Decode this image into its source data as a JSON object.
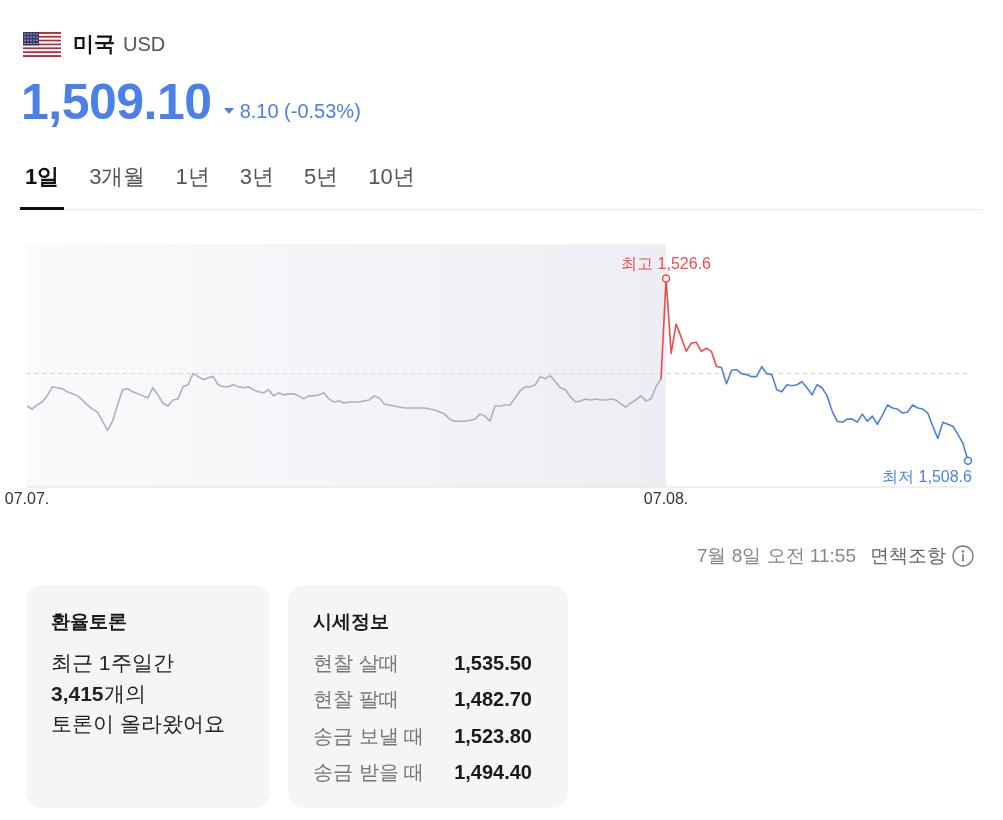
{
  "chart_data": {
    "type": "line",
    "title": "미국",
    "subtitle": "USD",
    "annotations": [
      "1,509.10",
      "8.10 (-0.53%)",
      "1일",
      "3개월",
      "1년",
      "3년",
      "5년",
      "10년",
      "7월 8일 오전 11:55",
      "면책조항",
      "환율토론",
      "최근 1주일간",
      "3,415",
      "개의",
      "토론이 올라왔어요",
      "시세정보",
      "현찰 살때",
      "1,535.50",
      "현찰 팔때",
      "1,482.70",
      "송금 보낼 때",
      "1,523.80",
      "송금 받을 때",
      "1,494.40"
    ],
    "categories": [
      "07.07.",
      null,
      null,
      null,
      null,
      null,
      null,
      null,
      null,
      null,
      null,
      null,
      null,
      null,
      null,
      null,
      null,
      null,
      null,
      null,
      null,
      null,
      null,
      null,
      null,
      null,
      null,
      null,
      null,
      null,
      null,
      null,
      null,
      null,
      null,
      null,
      null,
      null,
      null,
      null,
      null,
      null,
      null,
      null,
      null,
      null,
      null,
      null,
      null,
      null,
      null,
      null,
      null,
      null,
      null,
      null,
      null,
      null,
      null,
      null,
      null,
      null,
      null,
      null,
      null,
      null,
      null,
      null,
      null,
      null,
      null,
      null,
      null,
      null,
      null,
      null,
      null,
      null,
      null,
      null,
      null,
      null,
      null,
      null,
      null,
      null,
      null,
      null,
      null,
      null,
      null,
      null,
      null,
      null,
      null,
      null,
      null,
      null,
      null,
      null,
      null,
      null,
      null,
      null,
      null,
      null,
      null,
      null,
      null,
      null,
      null,
      null,
      null,
      null,
      null,
      null,
      null,
      null,
      null,
      null,
      null,
      null,
      null,
      null,
      null,
      null,
      null,
      "07.08.",
      null,
      null,
      null,
      null,
      null,
      null,
      null,
      null,
      null,
      null,
      null,
      null,
      null,
      null,
      null,
      null,
      null,
      null,
      null,
      null,
      null,
      null,
      null,
      null,
      null,
      null,
      null,
      null,
      null,
      null,
      null,
      null,
      null,
      null,
      null,
      null,
      null,
      null,
      null,
      null,
      null,
      null,
      null,
      null,
      null,
      null,
      null,
      null,
      null,
      null,
      null,
      null,
      null,
      null,
      null,
      null,
      null,
      null,
      null,
      null
    ],
    "series": [
      {
        "color": "#a9b2c4",
        "values": [
          1514.0,
          1513.7,
          1514.1,
          1514.4,
          1515.0,
          1515.9,
          1515.8,
          1515.7,
          1515.4,
          1515.2,
          1515.0,
          1514.6,
          1514.1,
          1513.7,
          1513.4,
          1512.5,
          1511.6,
          1512.5,
          1514.1,
          1515.6,
          1515.7,
          1515.4,
          1515.2,
          1515.0,
          1514.8,
          1515.8,
          1515.1,
          1514.3,
          1514.0,
          1514.6,
          1514.7,
          1515.9,
          1516.1,
          1517.2,
          1516.9,
          1516.6,
          1516.8,
          1516.9,
          1516.1,
          1515.9,
          1515.9,
          1516.1,
          1515.9,
          1515.8,
          1515.9,
          1515.6,
          1515.4,
          1515.3,
          1515.6,
          1515.0,
          1515.3,
          1515.1,
          1515.2,
          1515.2,
          1515.0,
          1514.7,
          1515.0,
          1515.0,
          1515.1,
          1515.3,
          1514.7,
          1514.4,
          1514.5,
          1514.3,
          1514.4,
          1514.4,
          1514.4,
          1514.5,
          1514.6,
          1515.0,
          1514.8,
          1514.2,
          1514.1,
          1514.0,
          1513.9,
          1513.8,
          1513.8,
          1513.8,
          1513.8,
          1513.8,
          1513.7,
          1513.6,
          1513.4,
          1513.2,
          1512.7,
          1512.5,
          1512.5,
          1512.5,
          1512.6,
          1512.7,
          1513.2,
          1513.0,
          1512.5,
          1514.0,
          1514.0,
          1514.1,
          1514.1,
          1514.8,
          1515.5,
          1515.9,
          1515.9,
          1516.1,
          1516.9,
          1516.7,
          1517.0,
          1516.4,
          1515.8,
          1515.6,
          1514.9,
          1514.4,
          1514.5,
          1514.7,
          1514.6,
          1514.7,
          1514.6,
          1514.6,
          1514.7,
          1514.6,
          1514.2,
          1513.9,
          1514.3,
          1514.6,
          1515.0,
          1514.5,
          1514.7,
          1515.9,
          1516.7,
          null,
          null,
          null,
          null,
          null,
          null,
          null,
          null,
          null,
          null,
          null,
          null,
          null,
          null,
          null,
          null,
          null,
          null,
          null,
          null,
          null,
          null,
          null,
          null,
          null,
          null,
          null,
          null,
          null,
          null,
          null,
          null,
          null,
          null,
          null,
          null,
          null,
          null,
          null,
          null,
          null,
          null,
          null,
          null,
          null,
          null,
          null,
          null,
          null,
          null,
          null,
          null,
          null,
          null,
          null,
          null,
          null,
          null,
          null,
          null,
          null
        ]
      },
      {
        "color": "#ee4b4e",
        "values": [
          null,
          null,
          null,
          null,
          null,
          null,
          null,
          null,
          null,
          null,
          null,
          null,
          null,
          null,
          null,
          null,
          null,
          null,
          null,
          null,
          null,
          null,
          null,
          null,
          null,
          null,
          null,
          null,
          null,
          null,
          null,
          null,
          null,
          null,
          null,
          null,
          null,
          null,
          null,
          null,
          null,
          null,
          null,
          null,
          null,
          null,
          null,
          null,
          null,
          null,
          null,
          null,
          null,
          null,
          null,
          null,
          null,
          null,
          null,
          null,
          null,
          null,
          null,
          null,
          null,
          null,
          null,
          null,
          null,
          null,
          null,
          null,
          null,
          null,
          null,
          null,
          null,
          null,
          null,
          null,
          null,
          null,
          null,
          null,
          null,
          null,
          null,
          null,
          null,
          null,
          null,
          null,
          null,
          null,
          null,
          null,
          null,
          null,
          null,
          null,
          null,
          null,
          null,
          null,
          null,
          null,
          null,
          null,
          null,
          null,
          null,
          null,
          null,
          null,
          null,
          null,
          null,
          null,
          null,
          null,
          null,
          null,
          null,
          null,
          null,
          null,
          1516.7,
          1526.6,
          1519.2,
          1522.1,
          1520.8,
          1519.4,
          1520.2,
          1520.3,
          1519.4,
          1519.7,
          1519.4,
          1517.9,
          1517.8,
          null,
          null,
          null,
          null,
          null,
          null,
          null,
          null,
          null,
          null,
          null,
          null,
          null,
          null,
          null,
          null,
          null,
          null,
          null,
          null,
          null,
          null,
          null,
          null,
          null,
          null,
          null,
          null,
          null,
          null,
          null,
          null,
          null,
          null,
          null,
          null,
          null,
          null,
          null,
          null,
          null,
          null,
          null,
          null,
          null,
          null,
          null,
          null,
          null
        ],
        "value_labels": [
          null,
          null,
          null,
          null,
          null,
          null,
          null,
          null,
          null,
          null,
          null,
          null,
          null,
          null,
          null,
          null,
          null,
          null,
          null,
          null,
          null,
          null,
          null,
          null,
          null,
          null,
          null,
          null,
          null,
          null,
          null,
          null,
          null,
          null,
          null,
          null,
          null,
          null,
          null,
          null,
          null,
          null,
          null,
          null,
          null,
          null,
          null,
          null,
          null,
          null,
          null,
          null,
          null,
          null,
          null,
          null,
          null,
          null,
          null,
          null,
          null,
          null,
          null,
          null,
          null,
          null,
          null,
          null,
          null,
          null,
          null,
          null,
          null,
          null,
          null,
          null,
          null,
          null,
          null,
          null,
          null,
          null,
          null,
          null,
          null,
          null,
          null,
          null,
          null,
          null,
          null,
          null,
          null,
          null,
          null,
          null,
          null,
          null,
          null,
          null,
          null,
          null,
          null,
          null,
          null,
          null,
          null,
          null,
          null,
          null,
          null,
          null,
          null,
          null,
          null,
          null,
          null,
          null,
          null,
          null,
          null,
          null,
          null,
          null,
          null,
          null,
          null,
          "최고 1,526.6",
          null,
          null,
          null,
          null,
          null,
          null,
          null,
          null,
          null,
          null,
          null,
          null,
          null,
          null,
          null,
          null,
          null,
          null,
          null,
          null,
          null,
          null,
          null,
          null,
          null,
          null,
          null,
          null,
          null,
          null,
          null,
          null,
          null,
          null,
          null,
          null,
          null,
          null,
          null,
          null,
          null,
          null,
          null,
          null,
          null,
          null,
          null,
          null,
          null,
          null,
          null,
          null,
          null,
          null,
          null,
          null,
          null,
          null,
          null,
          null
        ]
      },
      {
        "color": "#4d80df",
        "values": [
          null,
          null,
          null,
          null,
          null,
          null,
          null,
          null,
          null,
          null,
          null,
          null,
          null,
          null,
          null,
          null,
          null,
          null,
          null,
          null,
          null,
          null,
          null,
          null,
          null,
          null,
          null,
          null,
          null,
          null,
          null,
          null,
          null,
          null,
          null,
          null,
          null,
          null,
          null,
          null,
          null,
          null,
          null,
          null,
          null,
          null,
          null,
          null,
          null,
          null,
          null,
          null,
          null,
          null,
          null,
          null,
          null,
          null,
          null,
          null,
          null,
          null,
          null,
          null,
          null,
          null,
          null,
          null,
          null,
          null,
          null,
          null,
          null,
          null,
          null,
          null,
          null,
          null,
          null,
          null,
          null,
          null,
          null,
          null,
          null,
          null,
          null,
          null,
          null,
          null,
          null,
          null,
          null,
          null,
          null,
          null,
          null,
          null,
          null,
          null,
          null,
          null,
          null,
          null,
          null,
          null,
          null,
          null,
          null,
          null,
          null,
          null,
          null,
          null,
          null,
          null,
          null,
          null,
          null,
          null,
          null,
          null,
          null,
          null,
          null,
          null,
          null,
          null,
          null,
          null,
          null,
          null,
          null,
          null,
          null,
          null,
          null,
          null,
          1517.8,
          1516.2,
          1517.5,
          1517.6,
          1517.2,
          1517.1,
          1516.9,
          1516.9,
          1517.9,
          1517.2,
          1517.1,
          1515.6,
          1515.4,
          1516.1,
          1516.0,
          1516.1,
          1516.4,
          1515.8,
          1515.1,
          1516.1,
          1515.8,
          1515.0,
          1513.5,
          1512.5,
          1512.4,
          1512.7,
          1512.7,
          1512.4,
          1513.2,
          1512.5,
          1513.0,
          1512.2,
          1513.1,
          1514.1,
          1513.8,
          1513.7,
          1513.3,
          1513.4,
          1514.1,
          1513.8,
          1513.7,
          1513.3,
          1512.0,
          1510.8,
          1512.4,
          1512.2,
          1512.0,
          1511.2,
          1510.3,
          1508.6
        ],
        "value_labels": [
          null,
          null,
          null,
          null,
          null,
          null,
          null,
          null,
          null,
          null,
          null,
          null,
          null,
          null,
          null,
          null,
          null,
          null,
          null,
          null,
          null,
          null,
          null,
          null,
          null,
          null,
          null,
          null,
          null,
          null,
          null,
          null,
          null,
          null,
          null,
          null,
          null,
          null,
          null,
          null,
          null,
          null,
          null,
          null,
          null,
          null,
          null,
          null,
          null,
          null,
          null,
          null,
          null,
          null,
          null,
          null,
          null,
          null,
          null,
          null,
          null,
          null,
          null,
          null,
          null,
          null,
          null,
          null,
          null,
          null,
          null,
          null,
          null,
          null,
          null,
          null,
          null,
          null,
          null,
          null,
          null,
          null,
          null,
          null,
          null,
          null,
          null,
          null,
          null,
          null,
          null,
          null,
          null,
          null,
          null,
          null,
          null,
          null,
          null,
          null,
          null,
          null,
          null,
          null,
          null,
          null,
          null,
          null,
          null,
          null,
          null,
          null,
          null,
          null,
          null,
          null,
          null,
          null,
          null,
          null,
          null,
          null,
          null,
          null,
          null,
          null,
          null,
          null,
          null,
          null,
          null,
          null,
          null,
          null,
          null,
          null,
          null,
          null,
          null,
          null,
          null,
          null,
          null,
          null,
          null,
          null,
          null,
          null,
          null,
          null,
          null,
          null,
          null,
          null,
          null,
          null,
          null,
          null,
          null,
          null,
          null,
          null,
          null,
          null,
          null,
          null,
          null,
          null,
          null,
          null,
          null,
          null,
          null,
          null,
          null,
          null,
          null,
          null,
          null,
          null,
          null,
          null,
          null,
          null,
          null,
          null,
          null,
          "최저 1,508.6"
        ]
      }
    ],
    "ylim": [
      1506,
      1530
    ],
    "tick_labels": "x",
    "ref_lines": [
      {
        "axis": "y",
        "value": 1517.2,
        "color": "#cfd3da",
        "line_style": "dashed"
      }
    ],
    "bands": [
      {
        "axis": "x",
        "from": "07.07.",
        "to": "07.08.",
        "color": "#eceef3"
      }
    ]
  }
}
